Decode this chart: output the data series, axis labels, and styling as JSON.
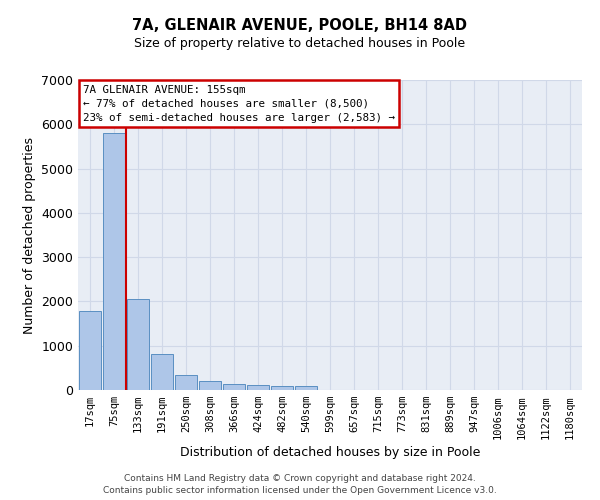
{
  "title": "7A, GLENAIR AVENUE, POOLE, BH14 8AD",
  "subtitle": "Size of property relative to detached houses in Poole",
  "xlabel": "Distribution of detached houses by size in Poole",
  "ylabel": "Number of detached properties",
  "categories": [
    "17sqm",
    "75sqm",
    "133sqm",
    "191sqm",
    "250sqm",
    "308sqm",
    "366sqm",
    "424sqm",
    "482sqm",
    "540sqm",
    "599sqm",
    "657sqm",
    "715sqm",
    "773sqm",
    "831sqm",
    "889sqm",
    "947sqm",
    "1006sqm",
    "1064sqm",
    "1122sqm",
    "1180sqm"
  ],
  "values": [
    1780,
    5800,
    2060,
    820,
    350,
    195,
    125,
    110,
    95,
    80,
    0,
    0,
    0,
    0,
    0,
    0,
    0,
    0,
    0,
    0,
    0
  ],
  "bar_color": "#aec6e8",
  "bar_edge_color": "#5a8fc2",
  "vline_color": "#cc0000",
  "annotation_title": "7A GLENAIR AVENUE: 155sqm",
  "annotation_line1": "← 77% of detached houses are smaller (8,500)",
  "annotation_line2": "23% of semi-detached houses are larger (2,583) →",
  "annotation_box_color": "#cc0000",
  "ylim": [
    0,
    7000
  ],
  "yticks": [
    0,
    1000,
    2000,
    3000,
    4000,
    5000,
    6000,
    7000
  ],
  "grid_color": "#d0d8e8",
  "bg_color": "#e8edf5",
  "footer_line1": "Contains HM Land Registry data © Crown copyright and database right 2024.",
  "footer_line2": "Contains public sector information licensed under the Open Government Licence v3.0."
}
